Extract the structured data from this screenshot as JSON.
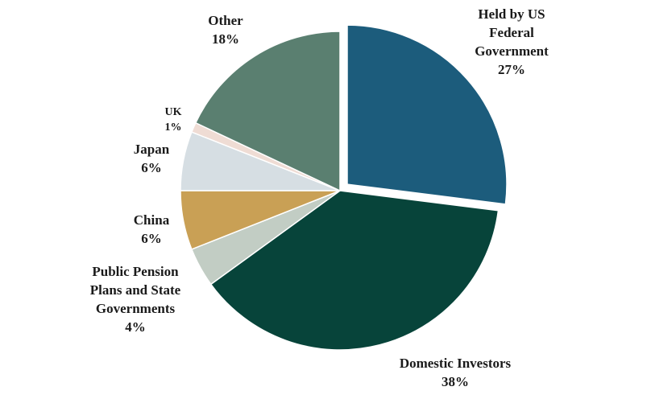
{
  "chart_data": {
    "type": "pie",
    "title": "",
    "slices": [
      {
        "label_lines": [
          "Held by US",
          "Federal",
          "Government"
        ],
        "value": 27,
        "value_label": "27%",
        "color": "#1c5c7c",
        "exploded": true
      },
      {
        "label_lines": [
          "Domestic Investors"
        ],
        "value": 38,
        "value_label": "38%",
        "color": "#07443a",
        "exploded": false
      },
      {
        "label_lines": [
          "Public Pension",
          "Plans and State",
          "Governments"
        ],
        "value": 4,
        "value_label": "4%",
        "color": "#c2cdc4",
        "exploded": false
      },
      {
        "label_lines": [
          "China"
        ],
        "value": 6,
        "value_label": "6%",
        "color": "#c9a055",
        "exploded": false
      },
      {
        "label_lines": [
          "Japan"
        ],
        "value": 6,
        "value_label": "6%",
        "color": "#d6dee3",
        "exploded": false
      },
      {
        "label_lines": [
          "UK"
        ],
        "value": 1,
        "value_label": "1%",
        "color": "#efdcd4",
        "exploded": false
      },
      {
        "label_lines": [
          "Other"
        ],
        "value": 18,
        "value_label": "18%",
        "color": "#5a7f70",
        "exploded": false
      }
    ]
  }
}
